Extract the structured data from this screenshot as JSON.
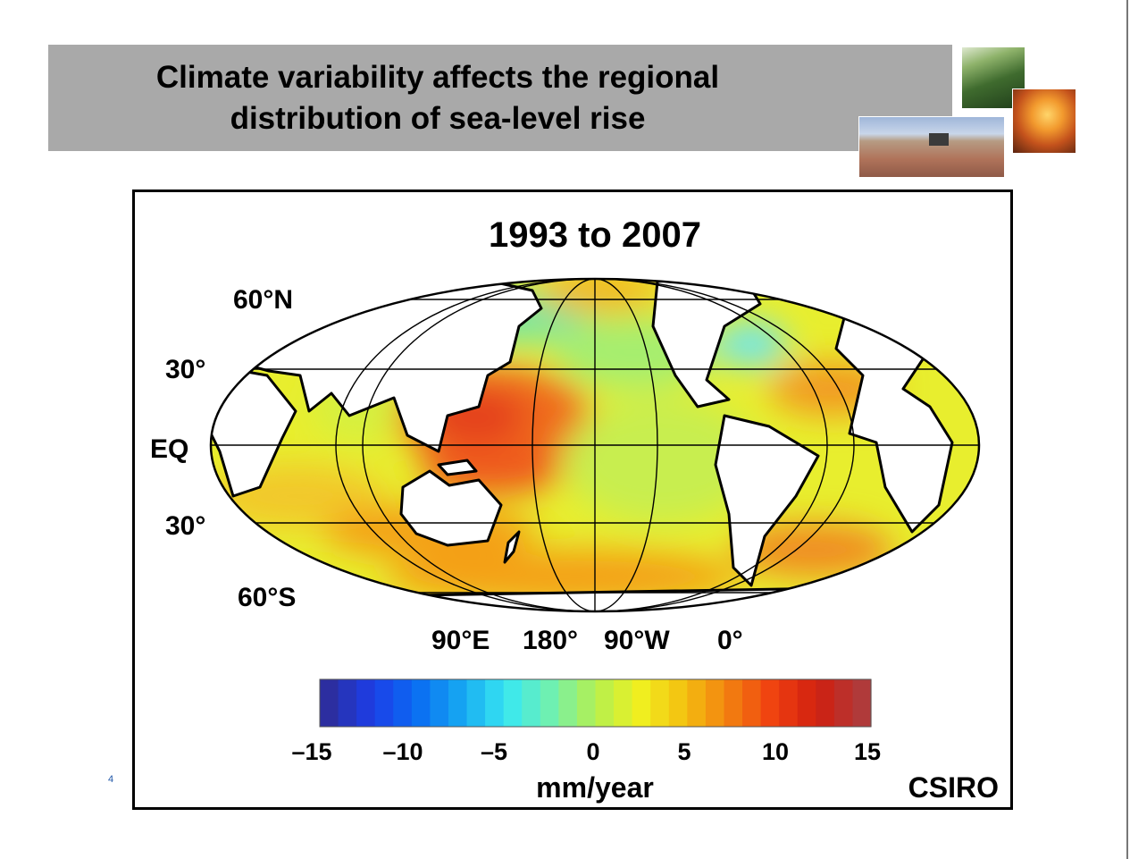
{
  "slide": {
    "title_line1": "Climate variability affects the regional",
    "title_line2": "distribution of sea-level rise",
    "page_number": "4"
  },
  "photos": [
    "forest-photo",
    "bushfire-photo",
    "harvest-photo"
  ],
  "map": {
    "title": "1993 to 2007",
    "lat_labels": [
      "60°N",
      "30°",
      "EQ",
      "30°",
      "60°S"
    ],
    "lon_labels": [
      "90°E",
      "180°",
      "90°W",
      "0°"
    ],
    "colorbar_ticks": [
      "–15",
      "–10",
      "–5",
      "0",
      "5",
      "10",
      "15"
    ],
    "colorbar_min": -15,
    "colorbar_max": 15,
    "unit": "mm/year",
    "credit": "CSIRO"
  },
  "colors": {
    "title_band": "#a9a9a9",
    "land": "#ffffff",
    "ocean_base": "#e8ee2e",
    "colormap": [
      "#2c2ea0",
      "#1c3ee8",
      "#0a6ef2",
      "#16a8f2",
      "#38e8f2",
      "#70f0b0",
      "#b4f050",
      "#f0f020",
      "#f4c010",
      "#f28010",
      "#f04010",
      "#d02010",
      "#b03a3a"
    ]
  }
}
